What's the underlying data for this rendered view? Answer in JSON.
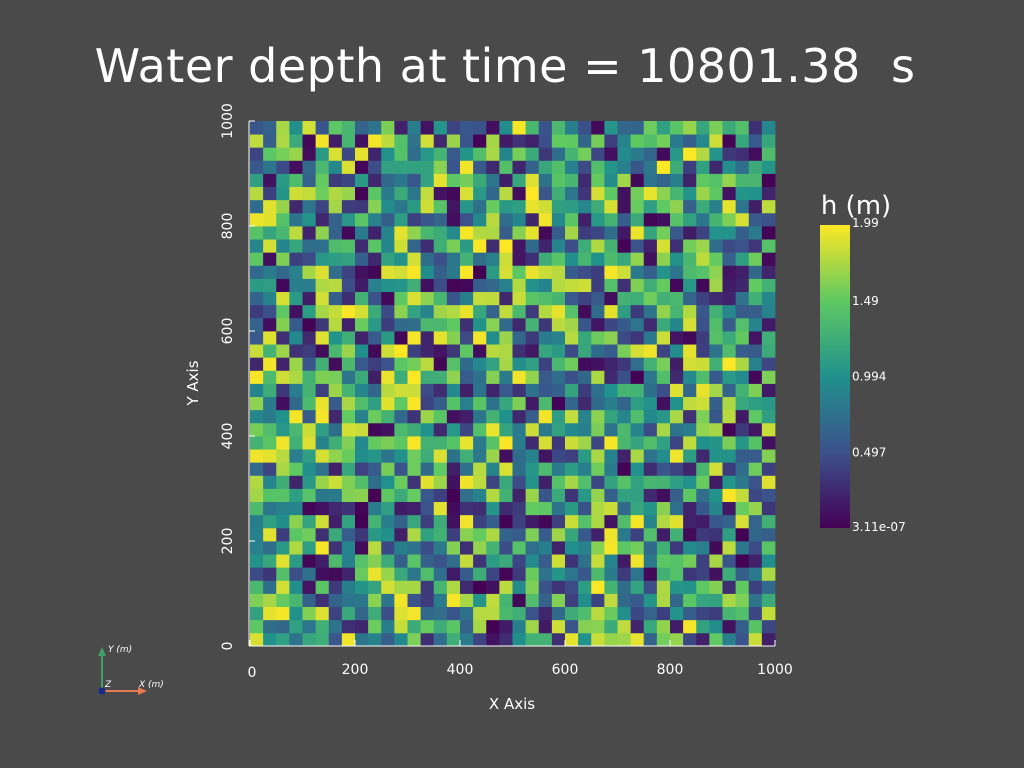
{
  "chart_data": {
    "type": "heatmap",
    "title": "Water depth at time = 10801.38  s",
    "xlabel": "X Axis",
    "ylabel": "Y Axis",
    "xlim": [
      0,
      1000
    ],
    "ylim": [
      0,
      1000
    ],
    "x_ticks": [
      "0",
      "200",
      "400",
      "600",
      "800",
      "1000"
    ],
    "y_ticks": [
      "0",
      "200",
      "400",
      "600",
      "800",
      "1000"
    ],
    "grid": false,
    "grid_shape": [
      40,
      40
    ],
    "cell_size": 25,
    "colormap": "viridis",
    "colorbar": {
      "title": "h (m)",
      "min": 3.11e-07,
      "max": 1.99,
      "tick_labels": [
        "1.99",
        "1.49",
        "0.994",
        "0.497",
        "3.11e-07"
      ],
      "tick_values": [
        1.99,
        1.49,
        0.994,
        0.497,
        3.11e-07
      ],
      "colors": [
        "#fde725",
        "#5ec962",
        "#21918c",
        "#3b528b",
        "#440154"
      ]
    },
    "orientation_axes": {
      "y_label": "Y (m)",
      "x_label": "X (m)",
      "z_label": "Z",
      "colors": {
        "x": "#e87a50",
        "y": "#3fa06a",
        "z": "#1a2a8a"
      }
    }
  }
}
